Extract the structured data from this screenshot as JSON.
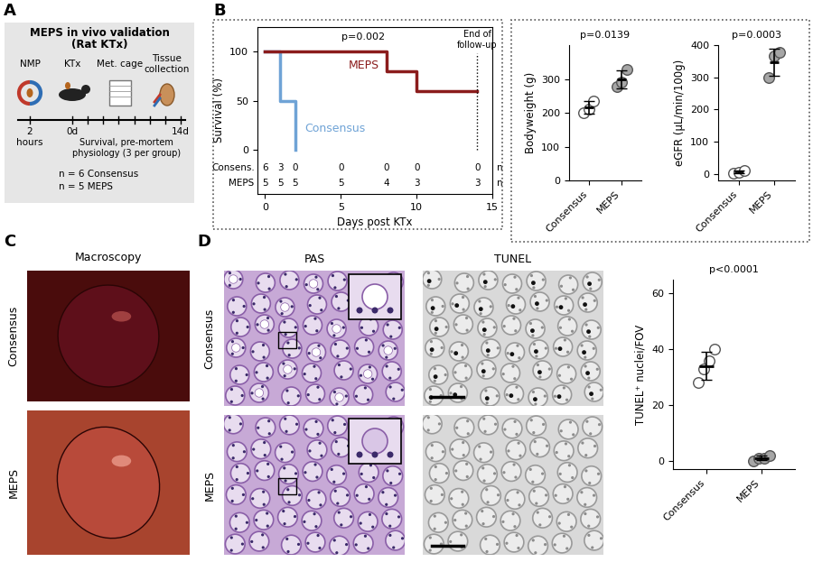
{
  "panel_labels": [
    "A",
    "B",
    "C",
    "D"
  ],
  "schematic": {
    "title": "MEPS in vivo validation",
    "subtitle": "(Rat KTx)",
    "steps": [
      "NMP",
      "KTx",
      "Met. cage",
      "Tissue collection"
    ],
    "time_labels": [
      "2 hours",
      "0d",
      "14d"
    ],
    "note": "Survival, pre-mortem physiology (3 per group)",
    "groups": [
      "n = 6 Consensus",
      "n = 5 MEPS"
    ]
  },
  "chart_data": [
    {
      "type": "line",
      "title": "p=0.002",
      "xlabel": "Days post KTx",
      "ylabel": "Survival (%)",
      "xlim": [
        -0.5,
        15
      ],
      "ylim": [
        -45,
        125
      ],
      "xticks": [
        0,
        5,
        10,
        15
      ],
      "yticks": [
        0,
        50,
        100
      ],
      "line_style": "steps",
      "series": [
        {
          "name": "Consensus",
          "color": "#6fa3d6",
          "x": [
            0,
            1,
            2
          ],
          "values": [
            100,
            50,
            0
          ]
        },
        {
          "name": "MEPS",
          "color": "#8b1c1c",
          "x": [
            0,
            8,
            10,
            14
          ],
          "values": [
            100,
            80,
            60,
            60
          ]
        }
      ],
      "annotations": [
        {
          "text": "End of follow-up",
          "x": 14
        }
      ],
      "risk_table": {
        "x": [
          0,
          1,
          2,
          5,
          8,
          10,
          14
        ],
        "unit": "n",
        "rows": [
          {
            "label": "Consens.",
            "values": [
              6,
              3,
              0,
              0,
              0,
              0,
              0
            ]
          },
          {
            "label": "MEPS",
            "values": [
              5,
              5,
              5,
              5,
              4,
              3,
              3
            ]
          }
        ]
      }
    },
    {
      "type": "scatter",
      "title": "p=0.0139",
      "ylabel": "Bodyweight (g)",
      "categories": [
        "Consensus",
        "MEPS"
      ],
      "values": [
        [
          200,
          212,
          235
        ],
        [
          278,
          292,
          328
        ]
      ],
      "mean": [
        216,
        299
      ],
      "sd": [
        18,
        26
      ],
      "colors": [
        "#ffffff",
        "#a6a6a6"
      ],
      "ylim": [
        0,
        400
      ],
      "yticks": [
        0,
        100,
        200,
        300
      ]
    },
    {
      "type": "scatter",
      "title": "p=0.0003",
      "ylabel": "eGFR (μL/min/100g)",
      "categories": [
        "Consensus",
        "MEPS"
      ],
      "values": [
        [
          2,
          6,
          12
        ],
        [
          300,
          365,
          378
        ]
      ],
      "mean": [
        7,
        348
      ],
      "sd": [
        5,
        42
      ],
      "colors": [
        "#ffffff",
        "#a6a6a6"
      ],
      "ylim": [
        -20,
        400
      ],
      "yticks": [
        0,
        100,
        200,
        300,
        400
      ]
    },
    {
      "type": "scatter",
      "title": "p<0.0001",
      "ylabel": "TUNEL⁺ nuclei/FOV",
      "categories": [
        "Consensus",
        "MEPS"
      ],
      "values": [
        [
          28,
          33,
          36,
          40
        ],
        [
          0,
          1,
          1,
          2
        ]
      ],
      "mean": [
        34,
        1
      ],
      "sd": [
        5,
        0.8
      ],
      "colors": [
        "#ffffff",
        "#a6a6a6"
      ],
      "ylim": [
        -3,
        65
      ],
      "yticks": [
        0,
        20,
        40,
        60
      ]
    }
  ],
  "images": {
    "macroscopy": {
      "title": "Macroscopy",
      "rows": [
        "Consensus",
        "MEPS"
      ]
    },
    "histology": {
      "columns": [
        "PAS",
        "TUNEL"
      ],
      "rows": [
        "Consensus",
        "MEPS"
      ]
    }
  }
}
